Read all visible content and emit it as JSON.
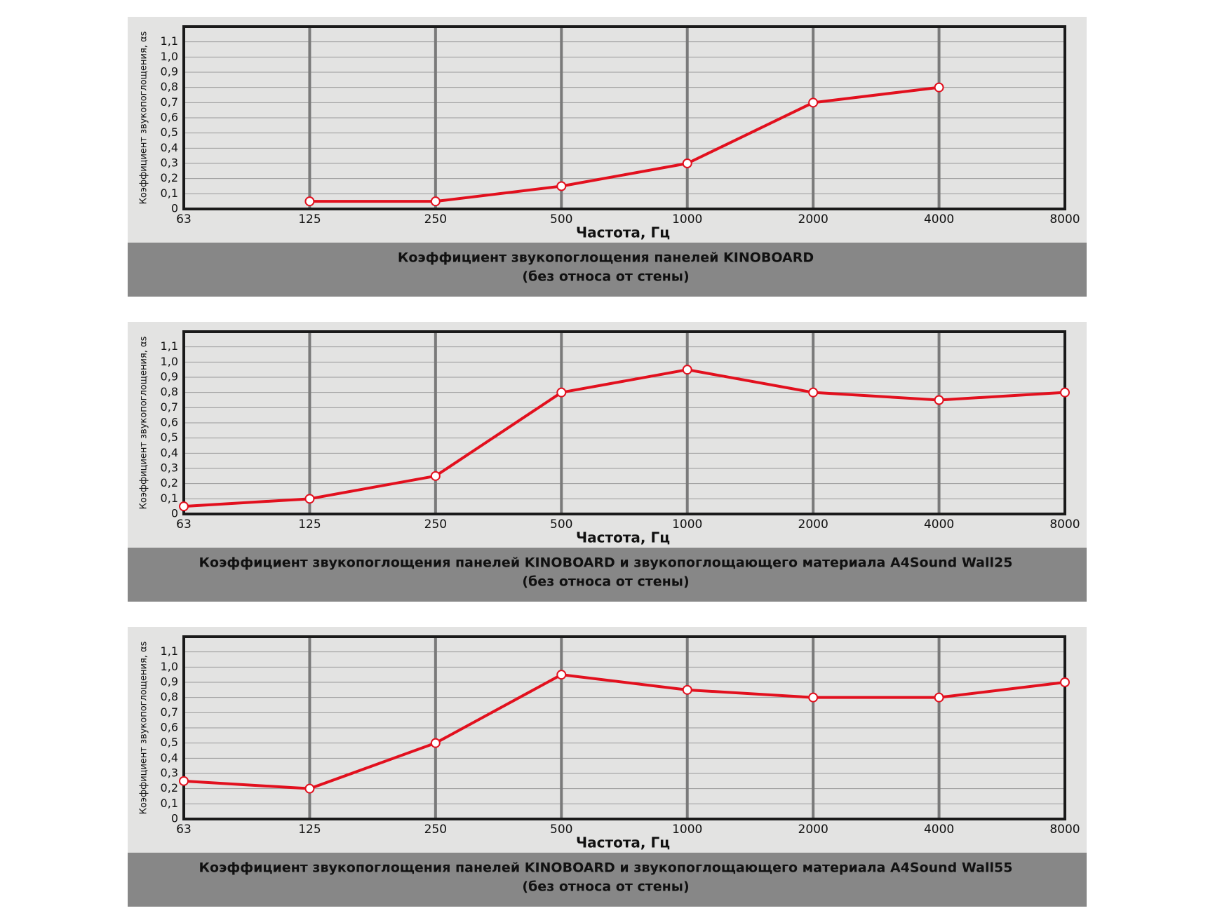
{
  "chart_data": [
    {
      "type": "line",
      "title": "Коэффициент звукопоглощения панелей KINOBOARD",
      "subtitle": "(без относа от стены)",
      "xlabel": "Частота, Гц",
      "ylabel": "Коэффициент звукопоглощения, αs",
      "categories": [
        "63",
        "125",
        "250",
        "500",
        "1000",
        "2000",
        "4000",
        "8000"
      ],
      "values": [
        null,
        0.05,
        0.05,
        0.15,
        0.3,
        0.7,
        0.8,
        null
      ],
      "color": "#e2101e",
      "ylim": [
        0,
        1.2
      ],
      "yticks": [
        0,
        {
          "value": 0.1,
          "label": "0,1"
        },
        {
          "value": 0.2,
          "label": "0,2"
        },
        {
          "value": 0.3,
          "label": "0,3"
        },
        {
          "value": 0.4,
          "label": "0,4"
        },
        {
          "value": 0.5,
          "label": "0,5"
        },
        {
          "value": 0.6,
          "label": "0,6"
        },
        {
          "value": 0.7,
          "label": "0,7"
        },
        {
          "value": 0.8,
          "label": "0,8"
        },
        {
          "value": 0.9,
          "label": "0,9"
        },
        {
          "value": 1.0,
          "label": "1,0"
        },
        {
          "value": 1.1,
          "label": "1,1"
        }
      ],
      "grid": true
    },
    {
      "type": "line",
      "title": "Коэффициент звукопоглощения панелей KINOBOARD и звукопоглощающего материала  A4Sound Wall25",
      "subtitle": "(без относа от стены)",
      "xlabel": "Частота, Гц",
      "ylabel": "Коэффициент звукопоглощения, αs",
      "categories": [
        "63",
        "125",
        "250",
        "500",
        "1000",
        "2000",
        "4000",
        "8000"
      ],
      "values": [
        0.05,
        0.1,
        0.25,
        0.8,
        0.95,
        0.8,
        0.75,
        0.8
      ],
      "color": "#e2101e",
      "ylim": [
        0,
        1.2
      ],
      "yticks": [
        0,
        {
          "value": 0.1,
          "label": "0,1"
        },
        {
          "value": 0.2,
          "label": "0,2"
        },
        {
          "value": 0.3,
          "label": "0,3"
        },
        {
          "value": 0.4,
          "label": "0,4"
        },
        {
          "value": 0.5,
          "label": "0,5"
        },
        {
          "value": 0.6,
          "label": "0,6"
        },
        {
          "value": 0.7,
          "label": "0,7"
        },
        {
          "value": 0.8,
          "label": "0,8"
        },
        {
          "value": 0.9,
          "label": "0,9"
        },
        {
          "value": 1.0,
          "label": "1,0"
        },
        {
          "value": 1.1,
          "label": "1,1"
        }
      ],
      "grid": true
    },
    {
      "type": "line",
      "title": "Коэффициент звукопоглощения панелей KINOBOARD и звукопоглощающего материала  A4Sound Wall55",
      "subtitle": "(без относа от стены)",
      "xlabel": "Частота, Гц",
      "ylabel": "Коэффициент звукопоглощения, αs",
      "categories": [
        "63",
        "125",
        "250",
        "500",
        "1000",
        "2000",
        "4000",
        "8000"
      ],
      "values": [
        0.25,
        0.2,
        0.5,
        0.95,
        0.85,
        0.8,
        0.8,
        0.9
      ],
      "color": "#e2101e",
      "ylim": [
        0,
        1.2
      ],
      "yticks": [
        0,
        {
          "value": 0.1,
          "label": "0,1"
        },
        {
          "value": 0.2,
          "label": "0,2"
        },
        {
          "value": 0.3,
          "label": "0,3"
        },
        {
          "value": 0.4,
          "label": "0,4"
        },
        {
          "value": 0.5,
          "label": "0,5"
        },
        {
          "value": 0.6,
          "label": "0,6"
        },
        {
          "value": 0.7,
          "label": "0,7"
        },
        {
          "value": 0.8,
          "label": "0,8"
        },
        {
          "value": 0.9,
          "label": "0,9"
        },
        {
          "value": 1.0,
          "label": "1,0"
        },
        {
          "value": 1.1,
          "label": "1,1"
        }
      ],
      "grid": true
    }
  ]
}
